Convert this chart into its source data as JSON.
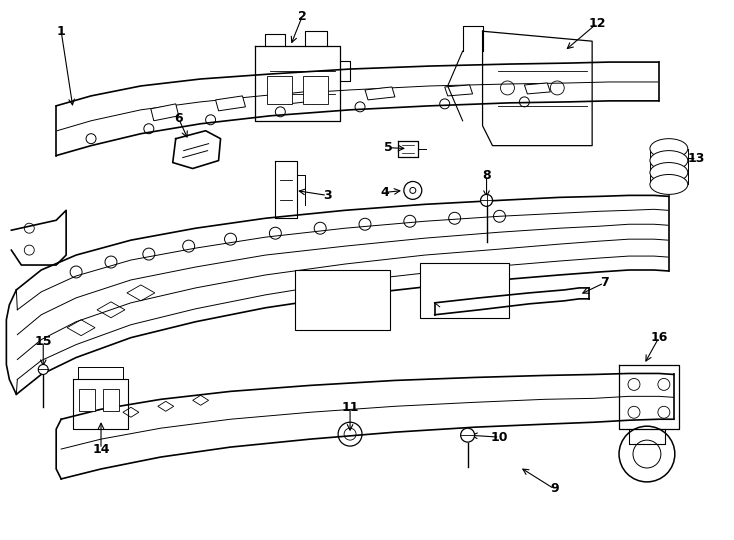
{
  "bg_color": "#ffffff",
  "line_color": "#000000",
  "lw_main": 1.2,
  "lw_thin": 0.7,
  "parts": [
    1,
    2,
    3,
    4,
    5,
    6,
    7,
    8,
    9,
    10,
    11,
    12,
    13,
    14,
    15,
    16
  ]
}
